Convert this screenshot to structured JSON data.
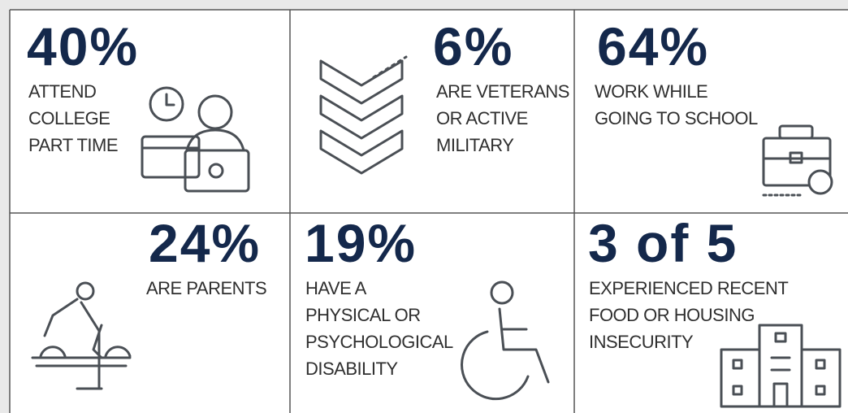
{
  "cells": [
    {
      "stat": "40%",
      "lines": [
        "ATTEND",
        "COLLEGE",
        "PART TIME"
      ]
    },
    {
      "stat": "6%",
      "lines": [
        "ARE VETERANS",
        "OR ACTIVE",
        "MILITARY"
      ]
    },
    {
      "stat": "64%",
      "lines": [
        "WORK WHILE",
        "GOING TO SCHOOL"
      ]
    },
    {
      "stat": "24%",
      "lines": [
        "ARE PARENTS"
      ]
    },
    {
      "stat": "19%",
      "lines": [
        "HAVE A",
        "PHYSICAL OR",
        "PSYCHOLOGICAL",
        "DISABILITY"
      ]
    },
    {
      "stat": "3 of 5",
      "lines": [
        "EXPERIENCED RECENT",
        "FOOD OR HOUSING",
        "INSECURITY"
      ]
    }
  ]
}
